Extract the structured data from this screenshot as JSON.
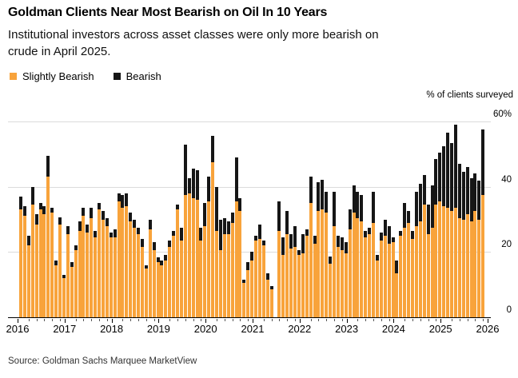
{
  "header": {
    "title": "Goldman Clients Near Most Bearish on Oil In 10 Years",
    "subtitle": "Institutional investors across asset classes were only more bearish on\ncrude in April 2025."
  },
  "legend": {
    "items": [
      {
        "label": "Slightly Bearish",
        "color": "#F8A33B"
      },
      {
        "label": "Bearish",
        "color": "#161616"
      }
    ]
  },
  "source_line": "Source: Goldman Sachs Marquee MarketView",
  "colors": {
    "slightly_bearish": "#F8A33B",
    "bearish": "#161616",
    "gridline": "#dbdbdb",
    "axis": "#000000",
    "background": "#ffffff"
  },
  "chart_data": {
    "type": "bar",
    "stacked": true,
    "title": "Goldman Clients Near Most Bearish on Oil In 10 Years",
    "unit_label": "% of clients surveyed",
    "xlabel": "",
    "ylabel": "% of clients surveyed",
    "ylim": [
      0,
      60
    ],
    "grid": true,
    "legend_position": "top-left",
    "yticks": [
      {
        "value": 0,
        "label": "0"
      },
      {
        "value": 20,
        "label": "20"
      },
      {
        "value": 40,
        "label": "40"
      },
      {
        "value": 60,
        "label": "60%"
      }
    ],
    "x_year_labels": [
      "2016",
      "2017",
      "2018",
      "2019",
      "2020",
      "2021",
      "2022",
      "2023",
      "2024",
      "2025",
      "2026"
    ],
    "frequency": "monthly",
    "missing_months": [
      "2021-06"
    ],
    "series_names": [
      "Slightly Bearish",
      "Bearish"
    ],
    "years": [
      {
        "year": 2016,
        "slightly_bearish": [
          33,
          31,
          22,
          34.5,
          28.5,
          33,
          31.5,
          43,
          32,
          16,
          28.5,
          12
        ],
        "bearish": [
          4,
          3,
          3,
          5.5,
          3,
          2,
          2.5,
          6.5,
          1.5,
          1.5,
          2,
          1
        ]
      },
      {
        "year": 2017,
        "slightly_bearish": [
          25.5,
          15.5,
          20.5,
          26.5,
          31,
          26,
          30.5,
          24.5,
          33,
          30,
          28,
          24.5
        ],
        "bearish": [
          2.5,
          1.5,
          1.5,
          3,
          2.5,
          2.5,
          3,
          2,
          2,
          2.5,
          2.5,
          1.5
        ]
      },
      {
        "year": 2018,
        "slightly_bearish": [
          24.5,
          35.5,
          33.5,
          34,
          29.5,
          27.5,
          25.5,
          21.5,
          15,
          27,
          20.5,
          17
        ],
        "bearish": [
          2.5,
          2.5,
          4,
          4,
          2.5,
          2.5,
          2,
          2.5,
          1,
          3,
          2.5,
          1.5
        ]
      },
      {
        "year": 2019,
        "slightly_bearish": [
          16,
          17.5,
          21.5,
          25,
          33,
          23.5,
          37.5,
          38,
          36.5,
          36,
          23.5,
          28
        ],
        "bearish": [
          1.5,
          1.5,
          2,
          1.5,
          1.5,
          4,
          15.5,
          4.5,
          9,
          9,
          4,
          7
        ]
      },
      {
        "year": 2020,
        "slightly_bearish": [
          35.5,
          47.5,
          26.5,
          20.5,
          25.5,
          25.5,
          29,
          35.5,
          32.5,
          10.5,
          14.5,
          17.5
        ],
        "bearish": [
          7.5,
          8,
          13.5,
          9.5,
          5,
          4,
          3,
          13.5,
          4,
          1,
          2.5,
          2.5
        ]
      },
      {
        "year": 2021,
        "slightly_bearish": [
          23.5,
          24,
          22,
          11.5,
          8.5,
          null,
          26.5,
          19,
          25.5,
          21,
          21.5,
          19
        ],
        "bearish": [
          1.5,
          4.5,
          1.5,
          2,
          1,
          null,
          9,
          5.5,
          7,
          4.5,
          6.5,
          1.5
        ]
      },
      {
        "year": 2022,
        "slightly_bearish": [
          19.5,
          25,
          35,
          22.5,
          32.5,
          33,
          32,
          16.5,
          28,
          21.5,
          20.5,
          19.5
        ],
        "bearish": [
          6,
          2,
          8,
          2.5,
          9,
          9,
          6.5,
          2,
          10.5,
          3.5,
          4,
          3.5
        ]
      },
      {
        "year": 2023,
        "slightly_bearish": [
          27,
          32,
          30.5,
          29.5,
          24.5,
          25.5,
          29,
          17.5,
          23.5,
          25,
          22.5,
          23
        ],
        "bearish": [
          6,
          8.5,
          8,
          8,
          2,
          2,
          9.5,
          1.5,
          2.5,
          5,
          5.5,
          1.5
        ]
      },
      {
        "year": 2024,
        "slightly_bearish": [
          13.5,
          25,
          27.5,
          29,
          24,
          28,
          29.5,
          34.5,
          25.5,
          27.5,
          34.5,
          35.5
        ],
        "bearish": [
          4,
          1.5,
          7.5,
          3.5,
          2.5,
          10.5,
          11.5,
          9,
          9,
          13,
          14,
          15
        ]
      },
      {
        "year": 2025,
        "slightly_bearish": [
          34,
          33.5,
          32.5,
          33.5,
          30.5,
          30,
          31.5,
          29.5,
          32.5,
          30,
          37.5
        ],
        "bearish": [
          18.5,
          23,
          21,
          25.5,
          16.5,
          14.5,
          14.5,
          13,
          11.5,
          12,
          20
        ]
      }
    ]
  }
}
